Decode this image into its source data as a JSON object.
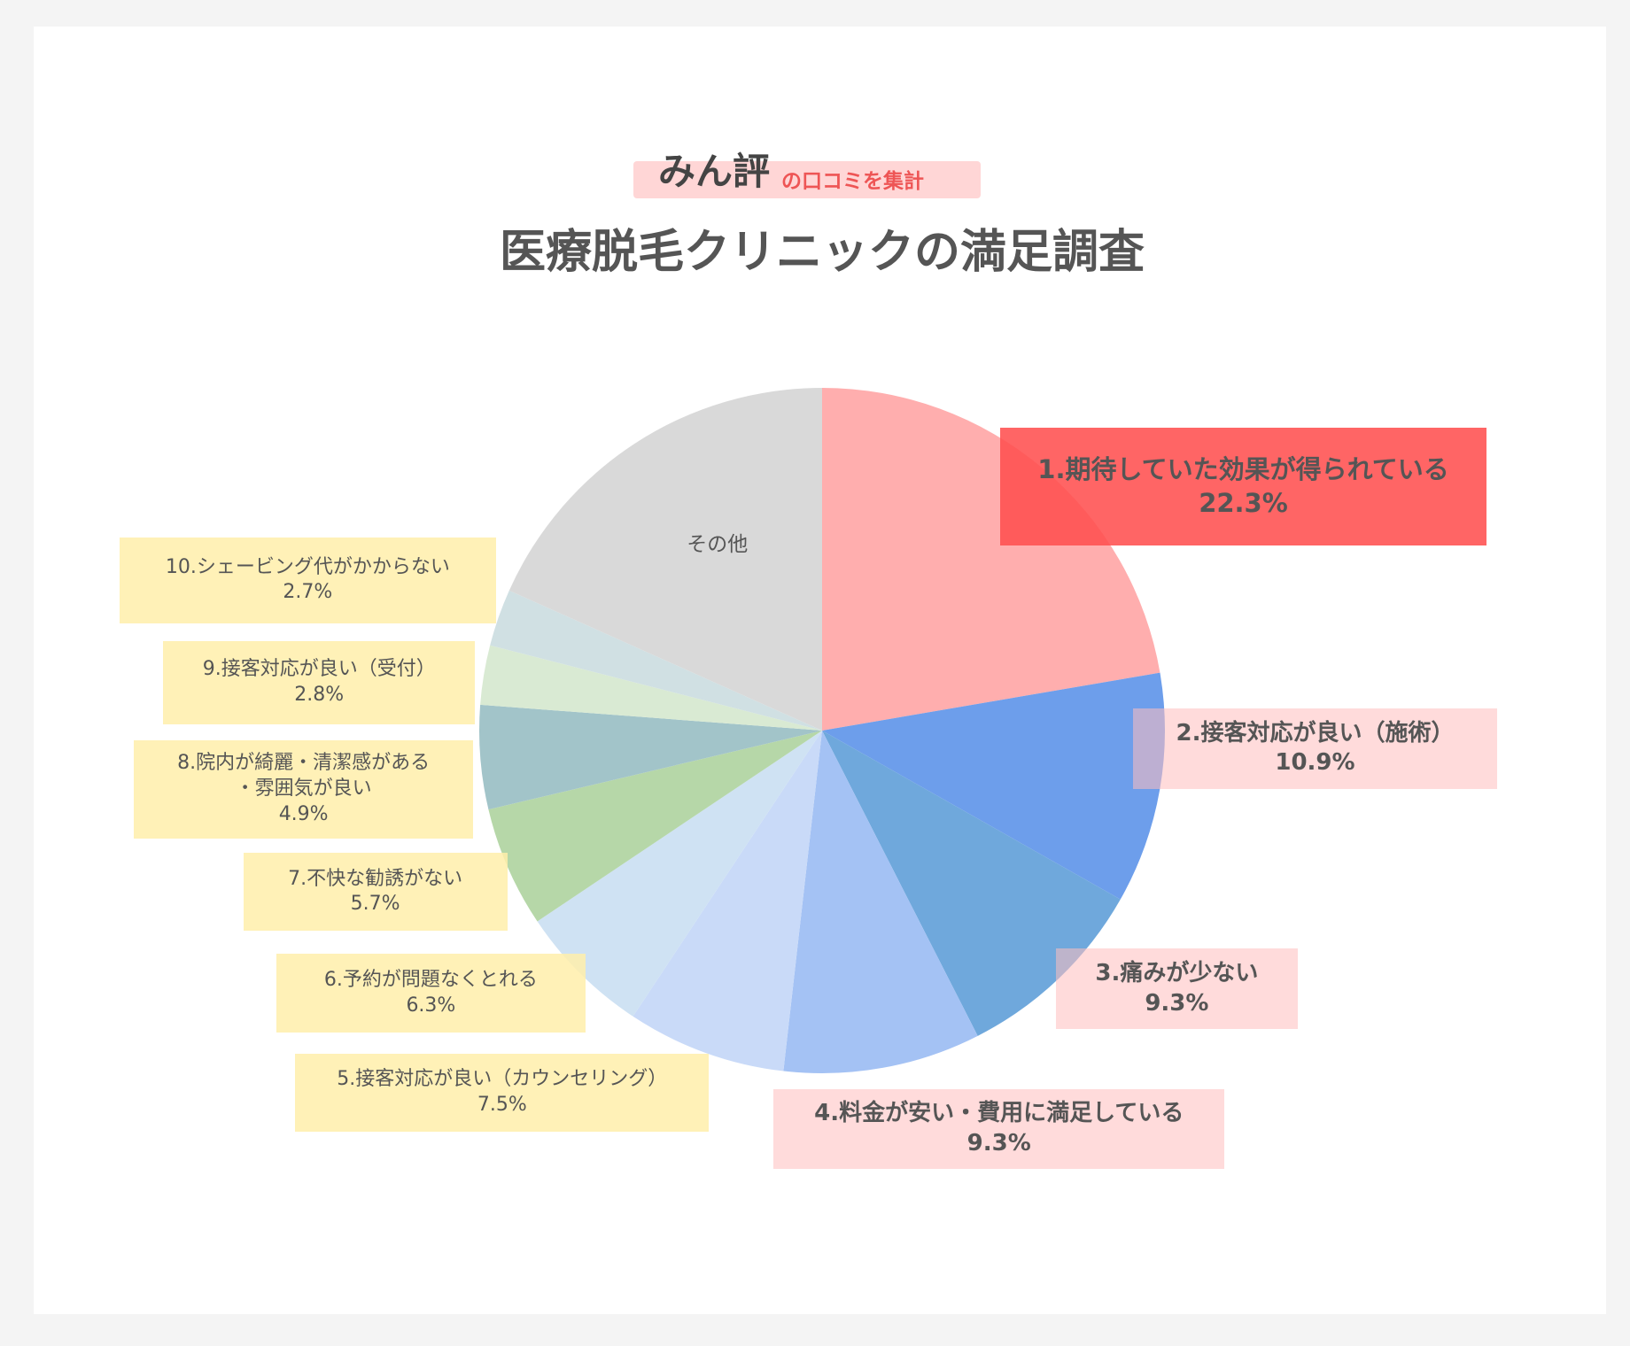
{
  "header": {
    "brand": "みん評",
    "tagline": "の口コミを集計"
  },
  "chart_data": {
    "type": "pie",
    "title": "医療脱毛クリニックの満足調査",
    "categories": [
      "1.期待していた効果が得られている",
      "2.接客対応が良い（施術）",
      "3.痛みが少ない",
      "4.料金が安い・費用に満足している",
      "5.接客対応が良い（カウンセリング）",
      "6.予約が問題なくとれる",
      "7.不快な勧誘がない",
      "8.院内が綺麗・清潔感がある\n・雰囲気が良い",
      "9.接客対応が良い（受付）",
      "10.シェービング代がかからない",
      "その他"
    ],
    "values": [
      22.3,
      10.9,
      9.3,
      9.3,
      7.5,
      6.3,
      5.7,
      4.9,
      2.8,
      2.7,
      18.3
    ],
    "value_labels": [
      "22.3%",
      "10.9%",
      "9.3%",
      "9.3%",
      "7.5%",
      "6.3%",
      "5.7%",
      "4.9%",
      "2.8%",
      "2.7%",
      null
    ],
    "colors": [
      "#ffaeae",
      "#6d9eeb",
      "#6fa8dc",
      "#a4c2f4",
      "#c9daf8",
      "#cfe2f3",
      "#b6d7a8",
      "#a2c4c9",
      "#d9ead3",
      "#d0e0e3",
      "#d9d9d9"
    ]
  }
}
